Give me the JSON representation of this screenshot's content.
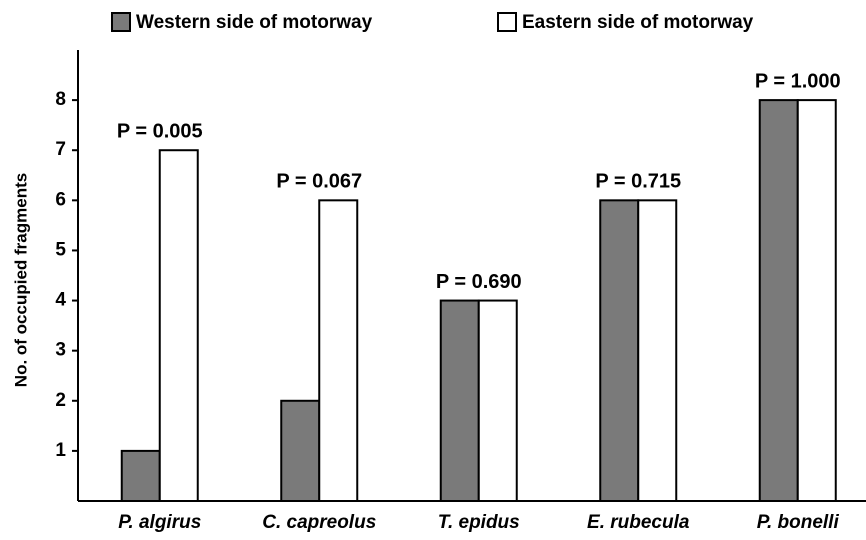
{
  "chart_data": {
    "type": "bar",
    "y_label": "No. of occupied fragments",
    "categories": [
      "P. algirus",
      "C. capreolus",
      "T. epidus",
      "E. rubecula",
      "P. bonelli"
    ],
    "series": [
      {
        "name": "Western side of motorway",
        "color": "#7a7a7a",
        "values": [
          1,
          2,
          4,
          6,
          8
        ]
      },
      {
        "name": "Eastern side of motorway",
        "color": "#ffffff",
        "values": [
          7,
          6,
          4,
          6,
          8
        ]
      }
    ],
    "annotations": [
      "P = 0.005",
      "P = 0.067",
      "P = 0.690",
      "P = 0.715",
      "P = 1.000"
    ],
    "ylim": [
      0,
      9
    ],
    "yticks": [
      1,
      2,
      3,
      4,
      5,
      6,
      7,
      8
    ]
  }
}
